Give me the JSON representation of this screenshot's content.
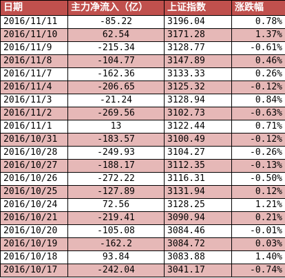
{
  "colors": {
    "header_bg": "#c0504d",
    "header_text": "#ffffff",
    "row_odd_bg": "#ffffff",
    "row_even_bg": "#e6b8b7",
    "border": "#000000"
  },
  "table": {
    "headers": [
      "日期",
      "主力净流入（亿）",
      "上证指数",
      "涨跌幅"
    ],
    "rows": [
      [
        "2016/11/11",
        "-85.22",
        "3196.04",
        "0.78%"
      ],
      [
        "2016/11/10",
        "62.54",
        "3171.28",
        "1.37%"
      ],
      [
        "2016/11/9",
        "-215.34",
        "3128.77",
        "-0.61%"
      ],
      [
        "2016/11/8",
        "-104.77",
        "3147.89",
        "0.46%"
      ],
      [
        "2016/11/7",
        "-162.36",
        "3133.33",
        "0.26%"
      ],
      [
        "2016/11/4",
        "-206.65",
        "3125.32",
        "-0.12%"
      ],
      [
        "2016/11/3",
        "-21.24",
        "3128.94",
        "0.84%"
      ],
      [
        "2016/11/2",
        "-269.56",
        "3102.73",
        "-0.63%"
      ],
      [
        "2016/11/1",
        "13",
        "3122.44",
        "0.71%"
      ],
      [
        "2016/10/31",
        "-183.57",
        "3100.49",
        "-0.12%"
      ],
      [
        "2016/10/28",
        "-249.93",
        "3104.27",
        "-0.26%"
      ],
      [
        "2016/10/27",
        "-188.17",
        "3112.35",
        "-0.13%"
      ],
      [
        "2016/10/26",
        "-272.22",
        "3116.31",
        "-0.50%"
      ],
      [
        "2016/10/25",
        "-127.89",
        "3131.94",
        "0.12%"
      ],
      [
        "2016/10/24",
        "72.56",
        "3128.25",
        "1.21%"
      ],
      [
        "2016/10/21",
        "-219.41",
        "3090.94",
        "0.21%"
      ],
      [
        "2016/10/20",
        "-105.08",
        "3084.46",
        "-0.01%"
      ],
      [
        "2016/10/19",
        "-162.2",
        "3084.72",
        "0.03%"
      ],
      [
        "2016/10/18",
        "93.84",
        "3083.88",
        "1.40%"
      ],
      [
        "2016/10/17",
        "-242.04",
        "3041.17",
        "-0.74%"
      ]
    ]
  }
}
